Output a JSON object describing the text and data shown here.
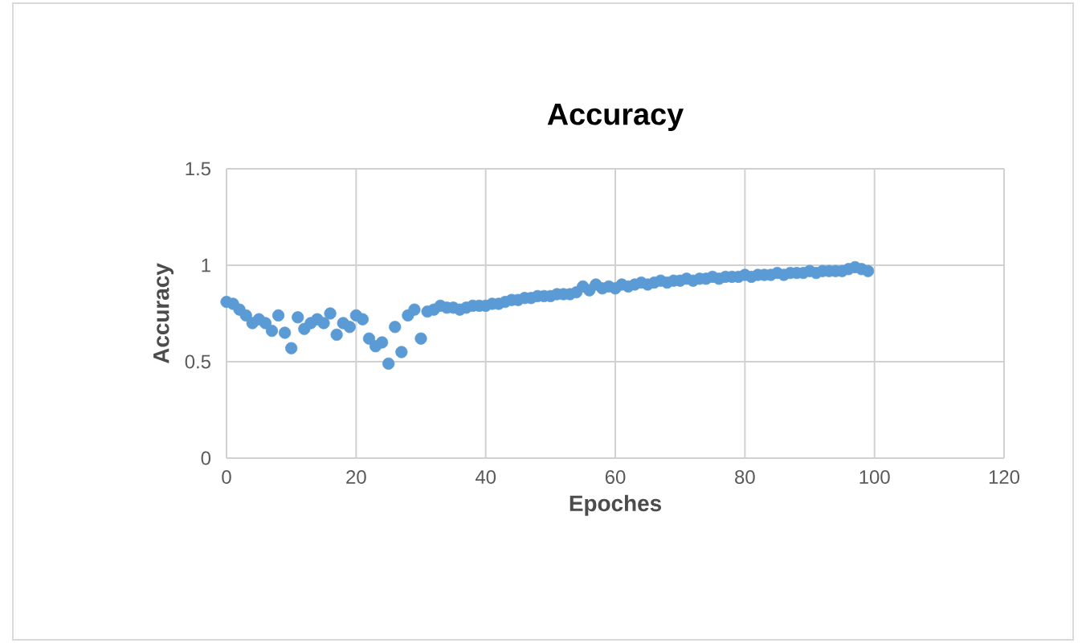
{
  "chart_data": {
    "type": "scatter",
    "title": "Accuracy",
    "xlabel": "Epoches",
    "ylabel": "Accuracy",
    "x": [
      0,
      1,
      2,
      3,
      4,
      5,
      6,
      7,
      8,
      9,
      10,
      11,
      12,
      13,
      14,
      15,
      16,
      17,
      18,
      19,
      20,
      21,
      22,
      23,
      24,
      25,
      26,
      27,
      28,
      29,
      30,
      31,
      32,
      33,
      34,
      35,
      36,
      37,
      38,
      39,
      40,
      41,
      42,
      43,
      44,
      45,
      46,
      47,
      48,
      49,
      50,
      51,
      52,
      53,
      54,
      55,
      56,
      57,
      58,
      59,
      60,
      61,
      62,
      63,
      64,
      65,
      66,
      67,
      68,
      69,
      70,
      71,
      72,
      73,
      74,
      75,
      76,
      77,
      78,
      79,
      80,
      81,
      82,
      83,
      84,
      85,
      86,
      87,
      88,
      89,
      90,
      91,
      92,
      93,
      94,
      95,
      96,
      97,
      98,
      99
    ],
    "series": [
      {
        "color": "#5b9bd5",
        "values": [
          0.81,
          0.8,
          0.77,
          0.74,
          0.7,
          0.72,
          0.7,
          0.66,
          0.74,
          0.65,
          0.57,
          0.73,
          0.67,
          0.7,
          0.72,
          0.7,
          0.75,
          0.64,
          0.7,
          0.68,
          0.74,
          0.72,
          0.62,
          0.58,
          0.6,
          0.49,
          0.68,
          0.55,
          0.74,
          0.77,
          0.62,
          0.76,
          0.77,
          0.79,
          0.78,
          0.78,
          0.77,
          0.78,
          0.79,
          0.79,
          0.79,
          0.8,
          0.8,
          0.81,
          0.82,
          0.82,
          0.83,
          0.83,
          0.84,
          0.84,
          0.84,
          0.85,
          0.85,
          0.85,
          0.86,
          0.89,
          0.87,
          0.9,
          0.88,
          0.89,
          0.88,
          0.9,
          0.89,
          0.9,
          0.91,
          0.9,
          0.91,
          0.92,
          0.91,
          0.92,
          0.92,
          0.93,
          0.92,
          0.93,
          0.93,
          0.94,
          0.93,
          0.94,
          0.94,
          0.94,
          0.95,
          0.94,
          0.95,
          0.95,
          0.95,
          0.96,
          0.95,
          0.96,
          0.96,
          0.96,
          0.97,
          0.96,
          0.97,
          0.97,
          0.97,
          0.97,
          0.98,
          0.99,
          0.98,
          0.97
        ]
      }
    ],
    "xlim": [
      0,
      120
    ],
    "xticks": [
      0,
      20,
      40,
      60,
      80,
      100,
      120
    ],
    "ylim": [
      0,
      1.5
    ],
    "yticks": [
      0,
      0.5,
      1,
      1.5
    ],
    "grid": true,
    "marker": "circle"
  }
}
